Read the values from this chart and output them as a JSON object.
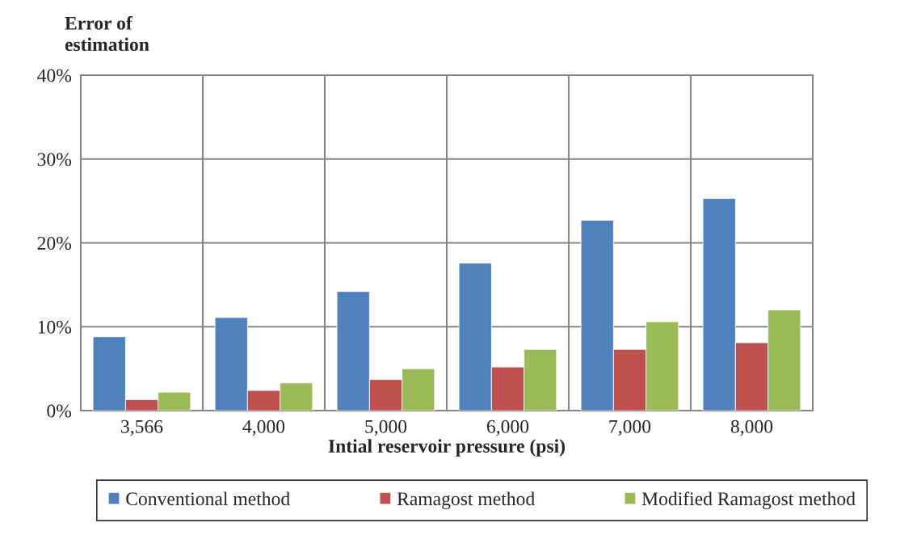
{
  "chart_data": {
    "type": "bar",
    "ylabel": "Error of\nestimation",
    "xlabel": "Intial reservoir pressure (psi)",
    "categories": [
      "3,566",
      "4,000",
      "5,000",
      "6,000",
      "7,000",
      "8,000"
    ],
    "series": [
      {
        "name": "Conventional method",
        "color": "#4f81bd",
        "values": [
          8.8,
          11.1,
          14.2,
          17.6,
          22.7,
          25.3
        ]
      },
      {
        "name": "Ramagost method",
        "color": "#c0504d",
        "values": [
          1.3,
          2.4,
          3.7,
          5.2,
          7.3,
          8.1
        ]
      },
      {
        "name": "Modified Ramagost method",
        "color": "#9bbb59",
        "values": [
          2.2,
          3.3,
          5.0,
          7.3,
          10.6,
          12.0
        ]
      }
    ],
    "ylim": [
      0,
      40
    ],
    "yticks": [
      {
        "value": 0,
        "label": "0%"
      },
      {
        "value": 10,
        "label": "10%"
      },
      {
        "value": 20,
        "label": "20%"
      },
      {
        "value": 30,
        "label": "30%"
      },
      {
        "value": 40,
        "label": "40%"
      }
    ],
    "grid": true,
    "legend": "bottom"
  }
}
